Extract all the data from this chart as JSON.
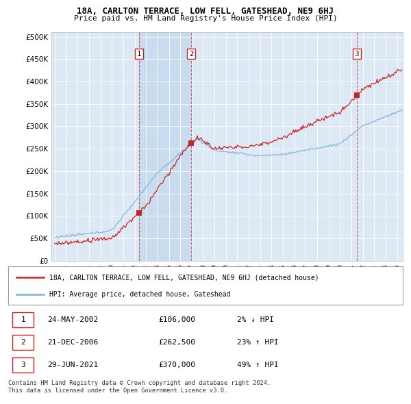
{
  "title1": "18A, CARLTON TERRACE, LOW FELL, GATESHEAD, NE9 6HJ",
  "title2": "Price paid vs. HM Land Registry's House Price Index (HPI)",
  "ylabel_ticks": [
    "£0",
    "£50K",
    "£100K",
    "£150K",
    "£200K",
    "£250K",
    "£300K",
    "£350K",
    "£400K",
    "£450K",
    "£500K"
  ],
  "ytick_values": [
    0,
    50000,
    100000,
    150000,
    200000,
    250000,
    300000,
    350000,
    400000,
    450000,
    500000
  ],
  "ylim": [
    0,
    510000
  ],
  "hpi_color": "#7ab3d9",
  "price_color": "#cc2222",
  "background_color": "#dce9f5",
  "shade_color": "#c5d8ee",
  "sale1_t": 2002.37,
  "sale1_price": 106000,
  "sale2_t": 2006.96,
  "sale2_price": 262500,
  "sale3_t": 2021.46,
  "sale3_price": 370000,
  "legend_line1": "18A, CARLTON TERRACE, LOW FELL, GATESHEAD, NE9 6HJ (detached house)",
  "legend_line2": "HPI: Average price, detached house, Gateshead",
  "footnote1": "Contains HM Land Registry data © Crown copyright and database right 2024.",
  "footnote2": "This data is licensed under the Open Government Licence v3.0.",
  "xlim_start": 1994.7,
  "xlim_end": 2025.5
}
